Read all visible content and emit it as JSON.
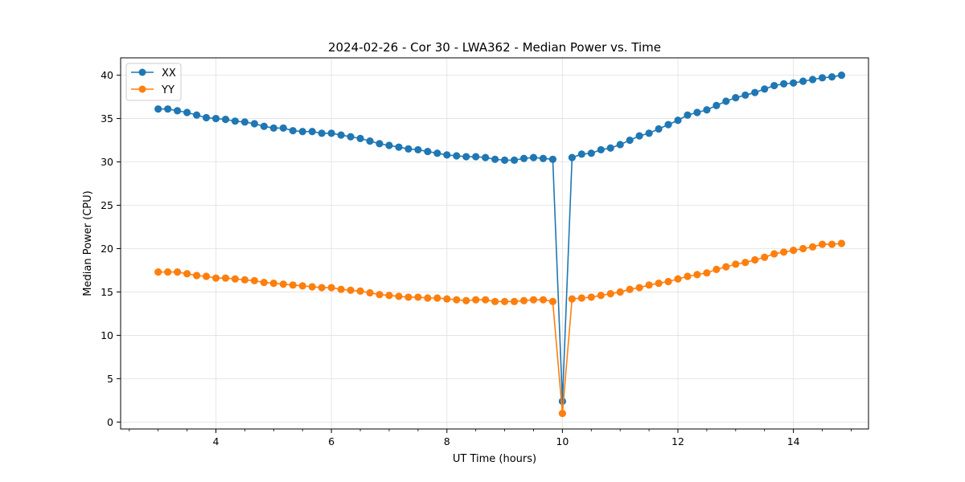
{
  "chart_data": {
    "type": "line",
    "title": "2024-02-26 - Cor 30 - LWA362 - Median Power vs. Time",
    "xlabel": "UT Time (hours)",
    "ylabel": "Median Power (CPU)",
    "xlim": [
      2.35,
      15.3
    ],
    "ylim": [
      -0.8,
      42
    ],
    "xticks": [
      4,
      6,
      8,
      10,
      12,
      14
    ],
    "yticks": [
      0,
      5,
      10,
      15,
      20,
      25,
      30,
      35,
      40
    ],
    "grid": true,
    "legend_position": "upper-left",
    "x": [
      3.0,
      3.167,
      3.333,
      3.5,
      3.667,
      3.833,
      4.0,
      4.167,
      4.333,
      4.5,
      4.667,
      4.833,
      5.0,
      5.167,
      5.333,
      5.5,
      5.667,
      5.833,
      6.0,
      6.167,
      6.333,
      6.5,
      6.667,
      6.833,
      7.0,
      7.167,
      7.333,
      7.5,
      7.667,
      7.833,
      8.0,
      8.167,
      8.333,
      8.5,
      8.667,
      8.833,
      9.0,
      9.167,
      9.333,
      9.5,
      9.667,
      9.833,
      10.0,
      10.167,
      10.333,
      10.5,
      10.667,
      10.833,
      11.0,
      11.167,
      11.333,
      11.5,
      11.667,
      11.833,
      12.0,
      12.167,
      12.333,
      12.5,
      12.667,
      12.833,
      13.0,
      13.167,
      13.333,
      13.5,
      13.667,
      13.833,
      14.0,
      14.167,
      14.333,
      14.5,
      14.667,
      14.833
    ],
    "series": [
      {
        "name": "XX",
        "color": "#1f77b4",
        "values": [
          36.1,
          36.1,
          35.9,
          35.7,
          35.4,
          35.1,
          35.0,
          34.9,
          34.7,
          34.6,
          34.4,
          34.1,
          33.9,
          33.9,
          33.6,
          33.5,
          33.5,
          33.3,
          33.3,
          33.1,
          32.9,
          32.7,
          32.4,
          32.1,
          31.9,
          31.7,
          31.5,
          31.4,
          31.2,
          31.0,
          30.8,
          30.7,
          30.6,
          30.6,
          30.5,
          30.3,
          30.2,
          30.2,
          30.4,
          30.5,
          30.4,
          30.3,
          2.4,
          30.5,
          30.9,
          31.0,
          31.4,
          31.6,
          32.0,
          32.5,
          33.0,
          33.3,
          33.8,
          34.3,
          34.8,
          35.4,
          35.7,
          36.0,
          36.5,
          37.0,
          37.4,
          37.7,
          38.0,
          38.4,
          38.8,
          39.0,
          39.1,
          39.3,
          39.5,
          39.7,
          39.8,
          40.0
        ]
      },
      {
        "name": "YY",
        "color": "#ff7f0e",
        "values": [
          17.3,
          17.3,
          17.3,
          17.1,
          16.9,
          16.8,
          16.6,
          16.6,
          16.5,
          16.4,
          16.3,
          16.1,
          16.0,
          15.9,
          15.8,
          15.7,
          15.6,
          15.5,
          15.5,
          15.3,
          15.2,
          15.1,
          14.9,
          14.7,
          14.6,
          14.5,
          14.4,
          14.4,
          14.3,
          14.3,
          14.2,
          14.1,
          14.0,
          14.1,
          14.1,
          13.9,
          13.9,
          13.9,
          14.0,
          14.1,
          14.1,
          13.9,
          1.0,
          14.2,
          14.3,
          14.4,
          14.6,
          14.8,
          15.0,
          15.3,
          15.5,
          15.8,
          16.0,
          16.2,
          16.5,
          16.8,
          17.0,
          17.2,
          17.6,
          17.9,
          18.2,
          18.4,
          18.7,
          19.0,
          19.4,
          19.6,
          19.8,
          20.0,
          20.2,
          20.5,
          20.5,
          20.6
        ]
      }
    ]
  }
}
